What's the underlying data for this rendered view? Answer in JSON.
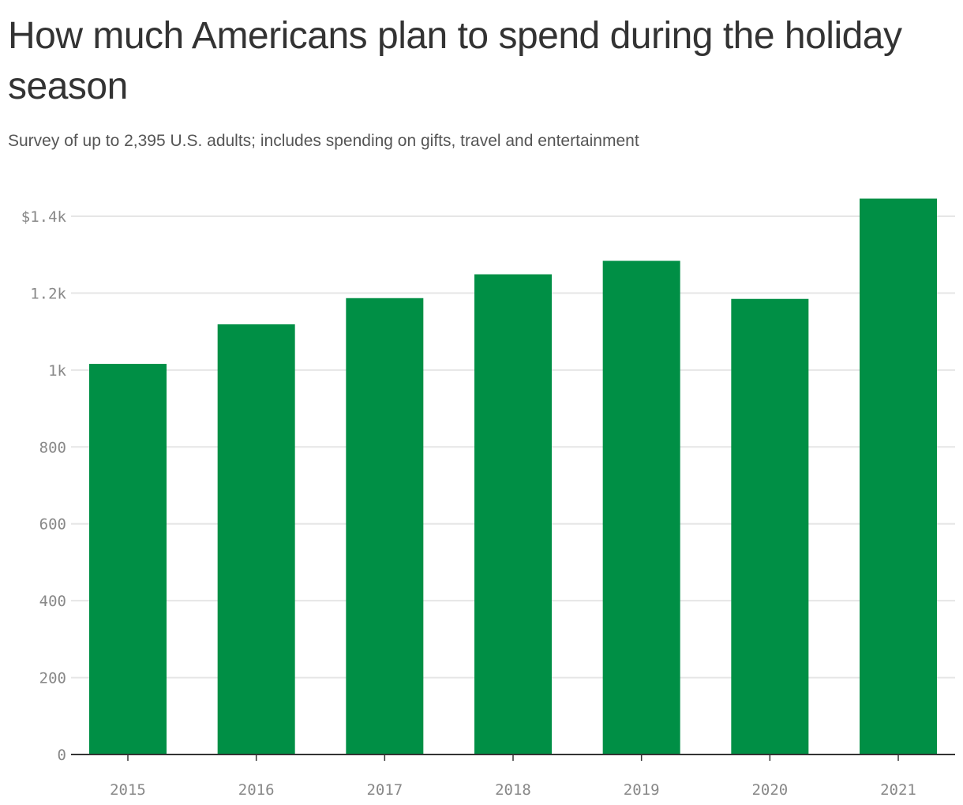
{
  "title": "How much Americans plan to spend during the holiday season",
  "subtitle": "Survey of up to 2,395 U.S. adults; includes spending on gifts, travel and entertainment",
  "colors": {
    "bar": "#008f45",
    "grid": "#e6e6e6",
    "axis": "#333333",
    "tick_text": "#888888"
  },
  "chart_data": {
    "type": "bar",
    "categories": [
      "2015",
      "2016",
      "2017",
      "2018",
      "2019",
      "2020",
      "2021"
    ],
    "values": [
      1016,
      1119,
      1187,
      1249,
      1284,
      1185,
      1446
    ],
    "ylim": [
      0,
      1400
    ],
    "yticks": [
      0,
      200,
      400,
      600,
      800,
      1000,
      1200,
      1400
    ],
    "ytick_labels": [
      "0",
      "200",
      "400",
      "600",
      "800",
      "1k",
      "1.2k",
      "$1.4k"
    ],
    "grid": true,
    "xlabel": "",
    "ylabel": ""
  }
}
